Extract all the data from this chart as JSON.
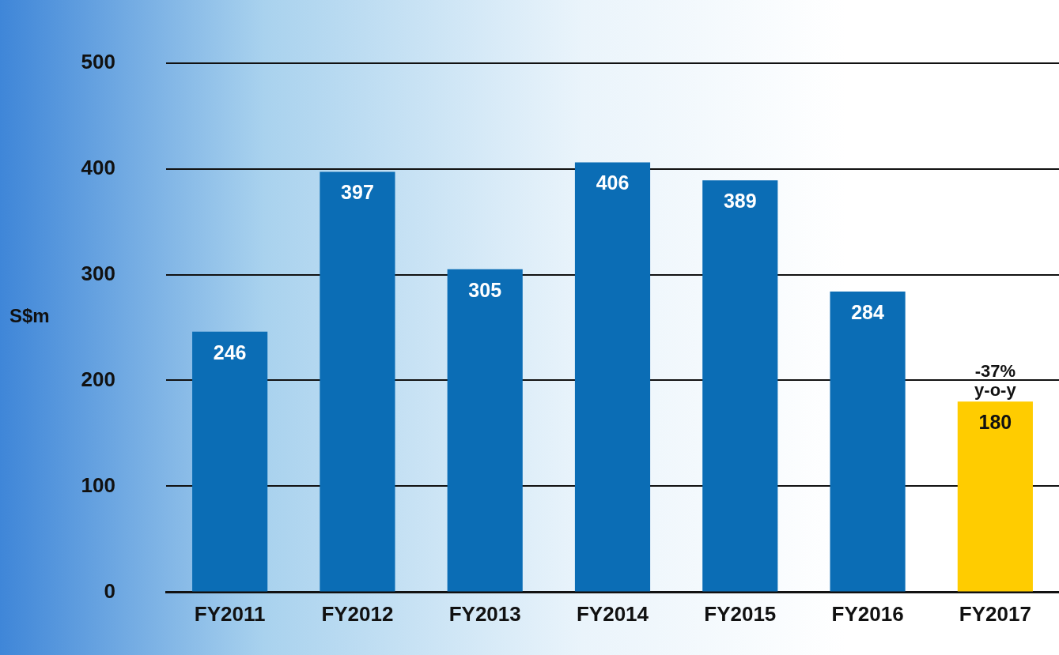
{
  "chart_data": {
    "type": "bar",
    "ylabel": "S$m",
    "categories": [
      "FY2011",
      "FY2012",
      "FY2013",
      "FY2014",
      "FY2015",
      "FY2016",
      "FY2017"
    ],
    "values": [
      246,
      397,
      305,
      406,
      389,
      284,
      180
    ],
    "colors": [
      "#0b6db5",
      "#0b6db5",
      "#0b6db5",
      "#0b6db5",
      "#0b6db5",
      "#0b6db5",
      "#ffcc00"
    ],
    "ylim": [
      0,
      500
    ],
    "yticks": [
      0,
      100,
      200,
      300,
      400,
      500
    ],
    "grid": "y",
    "data_labels": true,
    "legend": false,
    "annotations": [
      {
        "text": "-37% y-o-y",
        "x": "FY2017",
        "y": 180
      }
    ]
  }
}
